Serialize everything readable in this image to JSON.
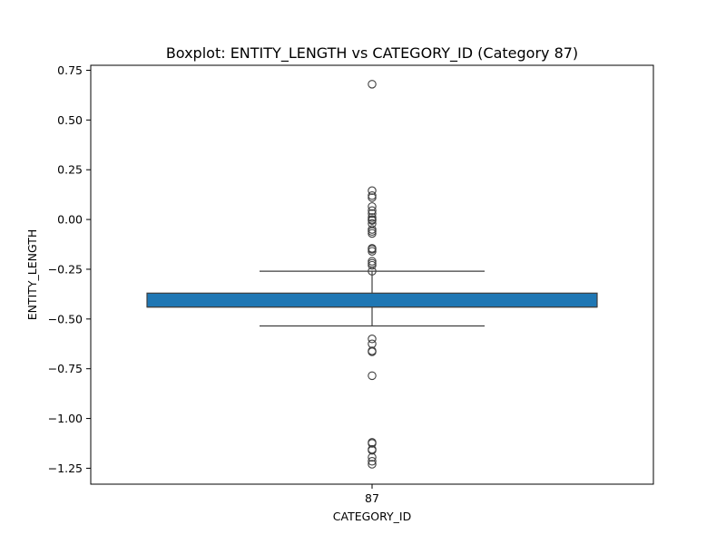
{
  "chart_data": {
    "type": "box",
    "title": "Boxplot: ENTITY_LENGTH vs CATEGORY_ID (Category 87)",
    "xlabel": "CATEGORY_ID",
    "ylabel": "ENTITY_LENGTH",
    "categories": [
      "87"
    ],
    "ylim": [
      -1.33,
      0.775
    ],
    "yticks": [
      0.75,
      0.5,
      0.25,
      0.0,
      -0.25,
      -0.5,
      -0.75,
      -1.0,
      -1.25
    ],
    "ytick_labels": [
      "0.75",
      "0.50",
      "0.25",
      "0.00",
      "−0.25",
      "−0.50",
      "−0.75",
      "−1.00",
      "−1.25"
    ],
    "grid": false,
    "box_color": "#1f77b4",
    "line_color": "#3f3f3f",
    "boxes": [
      {
        "category": "87",
        "whisker_low": -0.535,
        "q1": -0.44,
        "median": -0.44,
        "q3": -0.37,
        "whisker_high": -0.26,
        "outliers": [
          0.68,
          0.145,
          0.12,
          0.11,
          0.065,
          0.045,
          0.03,
          0.01,
          0.0,
          -0.005,
          -0.02,
          -0.05,
          -0.06,
          -0.07,
          -0.145,
          -0.15,
          -0.16,
          -0.21,
          -0.22,
          -0.23,
          -0.26,
          -0.6,
          -0.625,
          -0.66,
          -0.665,
          -0.785,
          -1.12,
          -1.125,
          -1.155,
          -1.16,
          -1.195,
          -1.215,
          -1.23
        ]
      }
    ]
  }
}
